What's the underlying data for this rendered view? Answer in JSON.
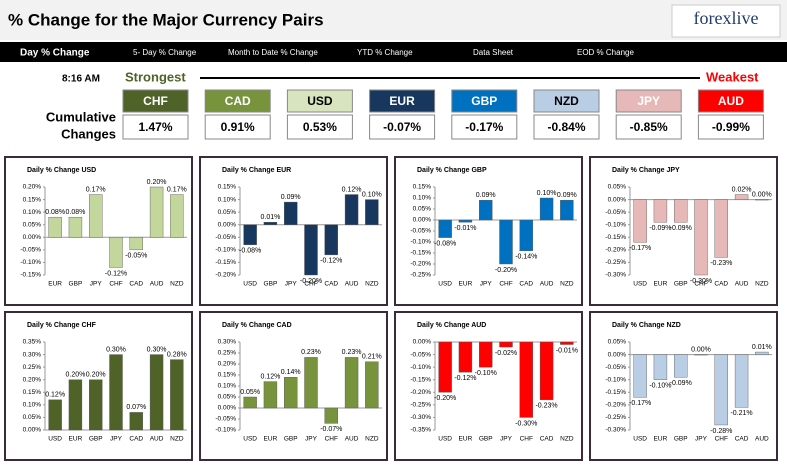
{
  "header": {
    "title": "% Change for the Major Currency Pairs",
    "logo": "forexlive"
  },
  "tabs": [
    "Day % Change",
    "5- Day % Change",
    "Month to Date % Change",
    "YTD % Change",
    "Data Sheet",
    "EOD % Change"
  ],
  "summary": {
    "time": "8:16 AM",
    "strongest": "Strongest",
    "weakest": "Weakest",
    "row_label": [
      "Cumulative",
      "Changes"
    ],
    "currencies": [
      {
        "name": "CHF",
        "change": "1.47%",
        "color": "#4f6228",
        "text_color": "#ffffff"
      },
      {
        "name": "CAD",
        "change": "0.91%",
        "color": "#77933c",
        "text_color": "#ffffff"
      },
      {
        "name": "USD",
        "change": "0.53%",
        "color": "#d7e4bd",
        "text_color": "#000000"
      },
      {
        "name": "EUR",
        "change": "-0.07%",
        "color": "#17375e",
        "text_color": "#ffffff"
      },
      {
        "name": "GBP",
        "change": "-0.17%",
        "color": "#0070c0",
        "text_color": "#ffffff"
      },
      {
        "name": "NZD",
        "change": "-0.84%",
        "color": "#b9cde5",
        "text_color": "#000000"
      },
      {
        "name": "JPY",
        "change": "-0.85%",
        "color": "#e6b9b8",
        "text_color": "#ffffff"
      },
      {
        "name": "AUD",
        "change": "-0.99%",
        "color": "#ff0000",
        "text_color": "#ffffff"
      }
    ]
  },
  "chart_data": [
    {
      "type": "bar",
      "title": "Daily % Change USD",
      "color": "#c3d69b",
      "categories": [
        "EUR",
        "GBP",
        "JPY",
        "CHF",
        "CAD",
        "AUD",
        "NZD"
      ],
      "values": [
        0.08,
        0.08,
        0.17,
        -0.12,
        -0.05,
        0.2,
        0.17
      ],
      "value_labels": [
        "0.08%",
        "0.08%",
        "0.17%",
        "-0.12%",
        "-0.05%",
        "0.20%",
        "0.17%"
      ],
      "ylim": [
        -0.15,
        0.2
      ],
      "yticks": [
        {
          "value": -0.15,
          "label": "-0.15%"
        },
        {
          "value": -0.1,
          "label": "-0.10%"
        },
        {
          "value": -0.05,
          "label": "-0.05%"
        },
        {
          "value": 0,
          "label": "0.00%"
        },
        {
          "value": 0.05,
          "label": "0.05%"
        },
        {
          "value": 0.1,
          "label": "0.10%"
        },
        {
          "value": 0.15,
          "label": "0.15%"
        },
        {
          "value": 0.2,
          "label": "0.20%"
        }
      ]
    },
    {
      "type": "bar",
      "title": "Daily % Change EUR",
      "color": "#17375e",
      "categories": [
        "USD",
        "GBP",
        "JPY",
        "CHF",
        "CAD",
        "AUD",
        "NZD"
      ],
      "values": [
        -0.08,
        0.01,
        0.09,
        -0.2,
        -0.12,
        0.12,
        0.1
      ],
      "value_labels": [
        "-0.08%",
        "0.01%",
        "0.09%",
        "-0.20%",
        "-0.12%",
        "0.12%",
        "0.10%"
      ],
      "ylim": [
        -0.2,
        0.15
      ],
      "yticks": [
        {
          "value": -0.2,
          "label": "-0.20%"
        },
        {
          "value": -0.15,
          "label": "-0.15%"
        },
        {
          "value": -0.1,
          "label": "-0.10%"
        },
        {
          "value": -0.05,
          "label": "-0.05%"
        },
        {
          "value": 0,
          "label": "0.00%"
        },
        {
          "value": 0.05,
          "label": "0.05%"
        },
        {
          "value": 0.1,
          "label": "0.10%"
        },
        {
          "value": 0.15,
          "label": "0.15%"
        }
      ]
    },
    {
      "type": "bar",
      "title": "Daily % Change GBP",
      "color": "#0070c0",
      "categories": [
        "USD",
        "EUR",
        "JPY",
        "CHF",
        "CAD",
        "AUD",
        "NZD"
      ],
      "values": [
        -0.08,
        -0.01,
        0.09,
        -0.2,
        -0.14,
        0.1,
        0.09
      ],
      "value_labels": [
        "-0.08%",
        "-0.01%",
        "0.09%",
        "-0.20%",
        "-0.14%",
        "0.10%",
        "0.09%"
      ],
      "ylim": [
        -0.25,
        0.15
      ],
      "yticks": [
        {
          "value": -0.25,
          "label": "-0.25%"
        },
        {
          "value": -0.2,
          "label": "-0.20%"
        },
        {
          "value": -0.15,
          "label": "-0.15%"
        },
        {
          "value": -0.1,
          "label": "-0.10%"
        },
        {
          "value": -0.05,
          "label": "-0.05%"
        },
        {
          "value": 0,
          "label": "0.00%"
        },
        {
          "value": 0.05,
          "label": "0.05%"
        },
        {
          "value": 0.1,
          "label": "0.10%"
        },
        {
          "value": 0.15,
          "label": "0.15%"
        }
      ]
    },
    {
      "type": "bar",
      "title": "Daily % Change JPY",
      "color": "#e6b9b8",
      "categories": [
        "USD",
        "EUR",
        "GBP",
        "CHF",
        "CAD",
        "AUD",
        "NZD"
      ],
      "values": [
        -0.17,
        -0.09,
        -0.09,
        -0.3,
        -0.23,
        0.02,
        0.0
      ],
      "value_labels": [
        "-0.17%",
        "-0.09%",
        "-0.09%",
        "-0.30%",
        "-0.23%",
        "0.02%",
        "0.00%"
      ],
      "ylim": [
        -0.3,
        0.05
      ],
      "yticks": [
        {
          "value": -0.3,
          "label": "-0.30%"
        },
        {
          "value": -0.25,
          "label": "-0.25%"
        },
        {
          "value": -0.2,
          "label": "-0.20%"
        },
        {
          "value": -0.15,
          "label": "-0.15%"
        },
        {
          "value": -0.1,
          "label": "-0.10%"
        },
        {
          "value": -0.05,
          "label": "-0.05%"
        },
        {
          "value": 0,
          "label": "0.00%"
        },
        {
          "value": 0.05,
          "label": "0.05%"
        }
      ]
    },
    {
      "type": "bar",
      "title": "Daily % Change CHF",
      "color": "#4f6228",
      "categories": [
        "USD",
        "EUR",
        "GBP",
        "JPY",
        "CAD",
        "AUD",
        "NZD"
      ],
      "values": [
        0.12,
        0.2,
        0.2,
        0.3,
        0.07,
        0.3,
        0.28
      ],
      "value_labels": [
        "0.12%",
        "0.20%",
        "0.20%",
        "0.30%",
        "0.07%",
        "0.30%",
        "0.28%"
      ],
      "ylim": [
        0,
        0.35
      ],
      "yticks": [
        {
          "value": 0,
          "label": "0.00%"
        },
        {
          "value": 0.05,
          "label": "0.05%"
        },
        {
          "value": 0.1,
          "label": "0.10%"
        },
        {
          "value": 0.15,
          "label": "0.15%"
        },
        {
          "value": 0.2,
          "label": "0.20%"
        },
        {
          "value": 0.25,
          "label": "0.25%"
        },
        {
          "value": 0.3,
          "label": "0.30%"
        },
        {
          "value": 0.35,
          "label": "0.35%"
        }
      ]
    },
    {
      "type": "bar",
      "title": "Daily % Change CAD",
      "color": "#77933c",
      "categories": [
        "USD",
        "EUR",
        "GBP",
        "JPY",
        "CHF",
        "AUD",
        "NZD"
      ],
      "values": [
        0.05,
        0.12,
        0.14,
        0.23,
        -0.07,
        0.23,
        0.21
      ],
      "value_labels": [
        "0.05%",
        "0.12%",
        "0.14%",
        "0.23%",
        "-0.07%",
        "0.23%",
        "0.21%"
      ],
      "ylim": [
        -0.1,
        0.3
      ],
      "yticks": [
        {
          "value": -0.1,
          "label": "-0.10%"
        },
        {
          "value": -0.05,
          "label": "-0.05%"
        },
        {
          "value": 0,
          "label": "0.00%"
        },
        {
          "value": 0.05,
          "label": "0.05%"
        },
        {
          "value": 0.1,
          "label": "0.10%"
        },
        {
          "value": 0.15,
          "label": "0.15%"
        },
        {
          "value": 0.2,
          "label": "0.20%"
        },
        {
          "value": 0.25,
          "label": "0.25%"
        },
        {
          "value": 0.3,
          "label": "0.30%"
        }
      ]
    },
    {
      "type": "bar",
      "title": "Daily % Change AUD",
      "color": "#ff0000",
      "categories": [
        "USD",
        "EUR",
        "GBP",
        "JPY",
        "CHF",
        "CAD",
        "NZD"
      ],
      "values": [
        -0.2,
        -0.12,
        -0.1,
        -0.02,
        -0.3,
        -0.23,
        -0.01
      ],
      "value_labels": [
        "-0.20%",
        "-0.12%",
        "-0.10%",
        "-0.02%",
        "-0.30%",
        "-0.23%",
        "-0.01%"
      ],
      "ylim": [
        -0.35,
        0
      ],
      "yticks": [
        {
          "value": -0.35,
          "label": "-0.35%"
        },
        {
          "value": -0.3,
          "label": "-0.30%"
        },
        {
          "value": -0.25,
          "label": "-0.25%"
        },
        {
          "value": -0.2,
          "label": "-0.20%"
        },
        {
          "value": -0.15,
          "label": "-0.15%"
        },
        {
          "value": -0.1,
          "label": "-0.10%"
        },
        {
          "value": -0.05,
          "label": "-0.05%"
        },
        {
          "value": 0,
          "label": "0.00%"
        }
      ]
    },
    {
      "type": "bar",
      "title": "Daily % Change NZD",
      "color": "#b9cde5",
      "categories": [
        "USD",
        "EUR",
        "GBP",
        "JPY",
        "CHF",
        "CAD",
        "AUD"
      ],
      "values": [
        -0.17,
        -0.1,
        -0.09,
        0.0,
        -0.28,
        -0.21,
        0.01
      ],
      "value_labels": [
        "-0.17%",
        "-0.10%",
        "-0.09%",
        "0.00%",
        "-0.28%",
        "-0.21%",
        "0.01%"
      ],
      "ylim": [
        -0.3,
        0.05
      ],
      "yticks": [
        {
          "value": -0.3,
          "label": "-0.30%"
        },
        {
          "value": -0.25,
          "label": "-0.25%"
        },
        {
          "value": -0.2,
          "label": "-0.20%"
        },
        {
          "value": -0.15,
          "label": "-0.15%"
        },
        {
          "value": -0.1,
          "label": "-0.10%"
        },
        {
          "value": -0.05,
          "label": "-0.05%"
        },
        {
          "value": 0,
          "label": "0.00%"
        },
        {
          "value": 0.05,
          "label": "0.05%"
        }
      ]
    }
  ]
}
